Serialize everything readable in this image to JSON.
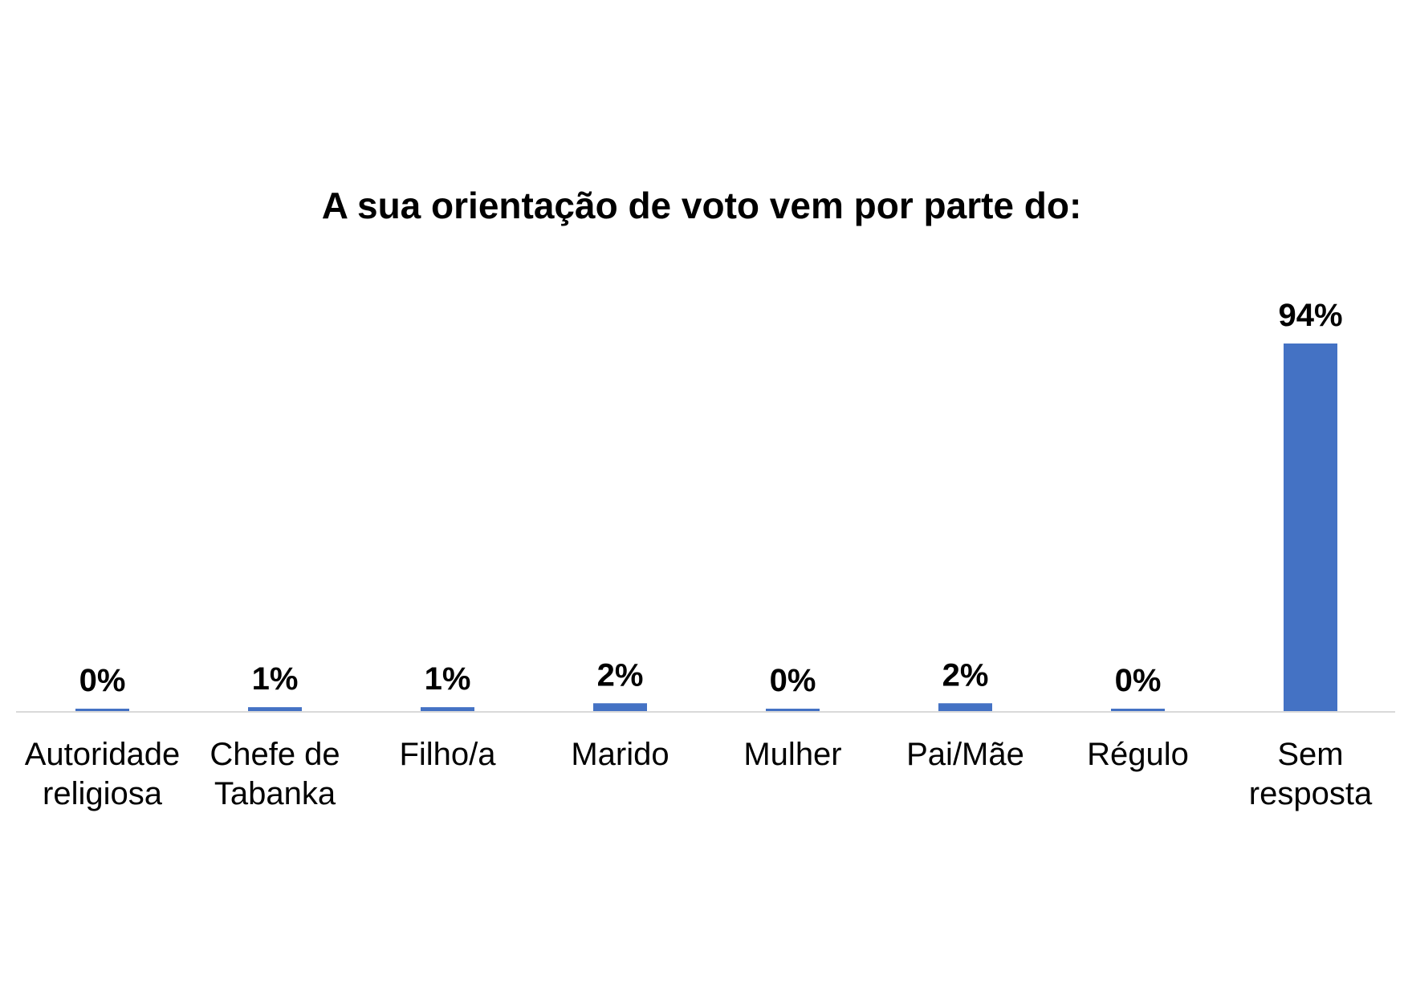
{
  "chart_data": {
    "type": "bar",
    "title": "A sua orientação de voto vem por parte do:",
    "categories": [
      [
        "Autoridade",
        "religiosa"
      ],
      [
        "Chefe de",
        "Tabanka"
      ],
      [
        "Filho/a"
      ],
      [
        "Marido"
      ],
      [
        "Mulher"
      ],
      [
        "Pai/Mãe"
      ],
      [
        "Régulo"
      ],
      [
        "Sem",
        "resposta"
      ]
    ],
    "values": [
      0,
      1,
      1,
      2,
      0,
      2,
      0,
      94
    ],
    "data_labels": [
      "0%",
      "1%",
      "1%",
      "2%",
      "0%",
      "2%",
      "0%",
      "94%"
    ],
    "unit": "%",
    "ylim": [
      0,
      100
    ],
    "grid": false,
    "y_axis_visible": false,
    "bar_color": "#4472C4",
    "axis_color": "#D9D9D9"
  }
}
